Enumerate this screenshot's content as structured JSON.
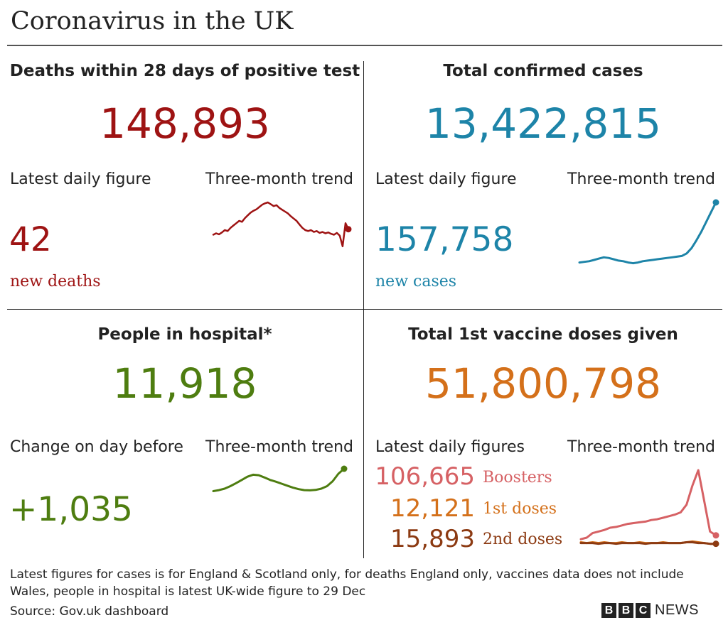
{
  "title": "Coronavirus in the UK",
  "colors": {
    "deaths": "#9e1313",
    "cases": "#1d84a8",
    "hospital": "#4e7d10",
    "vaccine": "#d4701a",
    "boosters": "#d66164",
    "first_doses": "#d4701a",
    "second_doses": "#8c3a12"
  },
  "deaths": {
    "heading": "Deaths within 28 days of positive test",
    "total": "148,893",
    "latest_label": "Latest daily figure",
    "trend_label": "Three-month trend",
    "latest_value": "42",
    "latest_unit": "new deaths",
    "trend": [
      0.3,
      0.33,
      0.31,
      0.35,
      0.4,
      0.38,
      0.45,
      0.5,
      0.55,
      0.6,
      0.58,
      0.66,
      0.72,
      0.78,
      0.82,
      0.85,
      0.9,
      0.95,
      0.98,
      1.0,
      0.96,
      0.92,
      0.94,
      0.88,
      0.84,
      0.8,
      0.76,
      0.7,
      0.65,
      0.6,
      0.52,
      0.45,
      0.4,
      0.38,
      0.4,
      0.36,
      0.38,
      0.34,
      0.36,
      0.33,
      0.35,
      0.32,
      0.3,
      0.34,
      0.28,
      0.05,
      0.55,
      0.42
    ]
  },
  "cases": {
    "heading": "Total confirmed cases",
    "total": "13,422,815",
    "latest_label": "Latest daily figure",
    "trend_label": "Three-month trend",
    "latest_value": "157,758",
    "latest_unit": "new cases",
    "trend": [
      0.08,
      0.09,
      0.1,
      0.12,
      0.14,
      0.16,
      0.15,
      0.13,
      0.11,
      0.1,
      0.08,
      0.07,
      0.08,
      0.1,
      0.11,
      0.12,
      0.13,
      0.14,
      0.15,
      0.16,
      0.17,
      0.18,
      0.22,
      0.3,
      0.42,
      0.55,
      0.7,
      0.85,
      1.0
    ]
  },
  "hospital": {
    "heading": "People in hospital*",
    "total": "11,918",
    "change_label": "Change on day before",
    "trend_label": "Three-month trend",
    "change_value": "+1,035",
    "trend": [
      0.1,
      0.14,
      0.2,
      0.3,
      0.42,
      0.55,
      0.68,
      0.76,
      0.74,
      0.65,
      0.55,
      0.48,
      0.4,
      0.32,
      0.24,
      0.18,
      0.14,
      0.13,
      0.15,
      0.2,
      0.3,
      0.5,
      0.8,
      1.0
    ]
  },
  "vaccine": {
    "heading": "Total 1st vaccine doses given",
    "total": "51,800,798",
    "latest_label": "Latest daily figures",
    "trend_label": "Three-month trend",
    "rows": [
      {
        "value": "106,665",
        "label": "Boosters",
        "key": "boosters"
      },
      {
        "value": "12,121",
        "label": "1st doses",
        "key": "first_doses"
      },
      {
        "value": "15,893",
        "label": "2nd doses",
        "key": "second_doses"
      }
    ],
    "trend_boosters": [
      0.1,
      0.12,
      0.18,
      0.2,
      0.22,
      0.25,
      0.26,
      0.28,
      0.3,
      0.31,
      0.32,
      0.33,
      0.35,
      0.36,
      0.38,
      0.4,
      0.42,
      0.45,
      0.55,
      0.8,
      1.0,
      0.6,
      0.2,
      0.15
    ],
    "trend_first": [
      0.06,
      0.05,
      0.06,
      0.05,
      0.06,
      0.05,
      0.05,
      0.06,
      0.05,
      0.05,
      0.06,
      0.05,
      0.05,
      0.05,
      0.06,
      0.05,
      0.05,
      0.05,
      0.06,
      0.07,
      0.06,
      0.05,
      0.04,
      0.04
    ],
    "trend_second": [
      0.05,
      0.05,
      0.05,
      0.04,
      0.05,
      0.05,
      0.04,
      0.05,
      0.05,
      0.05,
      0.05,
      0.04,
      0.05,
      0.05,
      0.05,
      0.05,
      0.05,
      0.05,
      0.06,
      0.06,
      0.05,
      0.05,
      0.04,
      0.04
    ]
  },
  "footer": {
    "note": "Latest figures for cases is for England & Scotland only, for deaths England only, vaccines data does not include Wales, people in hospital is latest UK-wide figure to 29 Dec",
    "source": "Source: Gov.uk dashboard",
    "brand_letters": [
      "B",
      "B",
      "C"
    ],
    "brand_word": "NEWS"
  }
}
